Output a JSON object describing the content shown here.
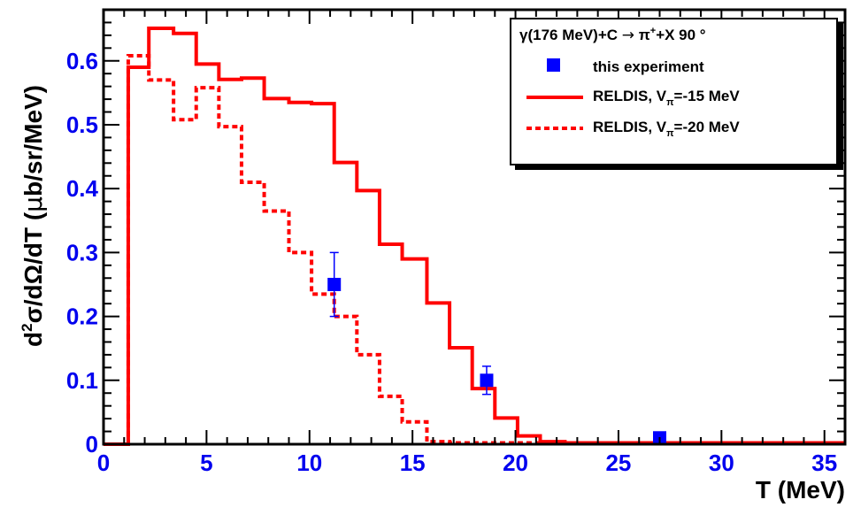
{
  "chart_data": {
    "type": "line",
    "title": "",
    "xlabel": "T (MeV)",
    "ylabel_parts": {
      "pre": "d",
      "sup": "2",
      "mid": "σ/dΩ/dT (",
      "mu": "μ",
      "post": "b/sr/MeV)"
    },
    "xlim": [
      0,
      36
    ],
    "ylim": [
      0,
      0.68
    ],
    "x_major_ticks": [
      0,
      5,
      10,
      15,
      20,
      25,
      30,
      35
    ],
    "x_tick_labels": [
      "0",
      "5",
      "10",
      "15",
      "20",
      "25",
      "30",
      "35"
    ],
    "y_major_ticks": [
      0,
      0.1,
      0.2,
      0.3,
      0.4,
      0.5,
      0.6
    ],
    "y_tick_labels": [
      "0",
      "0.1",
      "0.2",
      "0.3",
      "0.4",
      "0.5",
      "0.6"
    ],
    "grid": false,
    "legend": {
      "position": "top-right",
      "header": {
        "pre": "γ(176 MeV)+C ",
        "arrow": "→",
        "mid": " π",
        "sup": "+",
        "post": "+X   90   °"
      },
      "entries": [
        {
          "key": "experiment",
          "label": "this experiment"
        },
        {
          "key": "v15",
          "pre": "RELDIS, V",
          "sub": "π",
          "post": "=-15 MeV"
        },
        {
          "key": "v20",
          "pre": "RELDIS, V",
          "sub": "π",
          "post": "=-20 MeV"
        }
      ]
    },
    "series": [
      {
        "key": "v15",
        "kind": "histogram",
        "style": "solid",
        "color": "#ff0000",
        "edges": [
          -1,
          1.2,
          2.2,
          3.4,
          4.5,
          5.6,
          6.7,
          7.8,
          9.0,
          10.1,
          11.2,
          12.3,
          13.4,
          14.5,
          15.7,
          16.8,
          17.9,
          19.0,
          20.1,
          21.2,
          22.4,
          36
        ],
        "values": [
          0.0,
          0.59,
          0.651,
          0.643,
          0.595,
          0.571,
          0.573,
          0.541,
          0.535,
          0.533,
          0.441,
          0.397,
          0.313,
          0.29,
          0.221,
          0.151,
          0.087,
          0.041,
          0.013,
          0.004,
          0.002
        ]
      },
      {
        "key": "v20",
        "kind": "histogram",
        "style": "dashed",
        "color": "#ff0000",
        "edges": [
          -1,
          1.2,
          2.2,
          3.4,
          4.5,
          5.6,
          6.7,
          7.8,
          9.0,
          10.1,
          11.2,
          12.3,
          13.4,
          14.5,
          15.7,
          16.8,
          36
        ],
        "values": [
          0.0,
          0.608,
          0.57,
          0.508,
          0.558,
          0.497,
          0.41,
          0.365,
          0.3,
          0.235,
          0.2,
          0.14,
          0.075,
          0.035,
          0.004,
          0.002
        ]
      },
      {
        "key": "experiment",
        "kind": "points",
        "color": "#0000ff",
        "points": [
          {
            "x": 11.2,
            "y": 0.25,
            "err_up": 0.05,
            "err_down": 0.05
          },
          {
            "x": 18.6,
            "y": 0.1,
            "err_up": 0.022,
            "err_down": 0.022
          },
          {
            "x": 27.0,
            "y": 0.01,
            "err_up": 0.0,
            "err_down": 0.0
          }
        ]
      }
    ]
  }
}
